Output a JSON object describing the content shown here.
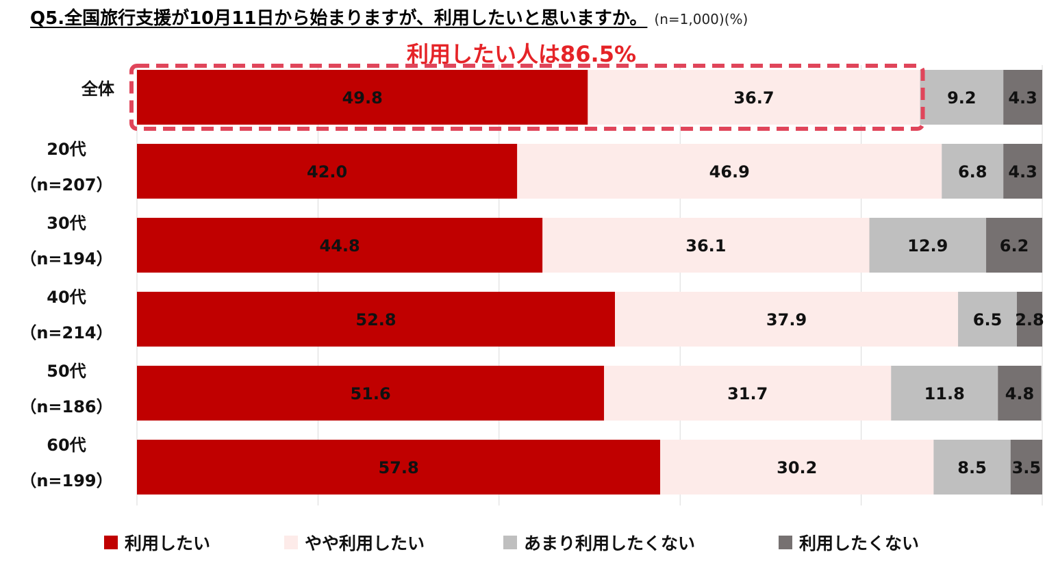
{
  "title": "Q5.全国旅行支援が10月11日から始まりますが、利用したいと思いますか。",
  "note": "(n=1,000)(%)",
  "callout": "利用したい人は86.5%",
  "chart_data": {
    "type": "bar",
    "orientation": "horizontal",
    "stacked": true,
    "categories": [
      [
        "全体"
      ],
      [
        "20代",
        "（n=207）"
      ],
      [
        "30代",
        "（n=194）"
      ],
      [
        "40代",
        "（n=214）"
      ],
      [
        "50代",
        "（n=186）"
      ],
      [
        "60代",
        "（n=199）"
      ]
    ],
    "series": [
      {
        "name": "利用したい",
        "color": "#c00000",
        "values": [
          49.8,
          42.0,
          44.8,
          52.8,
          51.6,
          57.8
        ]
      },
      {
        "name": "やや利用したい",
        "color": "#fdebe9",
        "values": [
          36.7,
          46.9,
          36.1,
          37.9,
          31.7,
          30.2
        ]
      },
      {
        "name": "あまり利用したくない",
        "color": "#bfbfbf",
        "values": [
          9.2,
          6.8,
          12.9,
          6.5,
          11.8,
          8.5
        ]
      },
      {
        "name": "利用したくない",
        "color": "#767171",
        "values": [
          4.3,
          4.3,
          6.2,
          2.8,
          4.8,
          3.5
        ]
      }
    ],
    "xlim": [
      0,
      100
    ],
    "grid": true,
    "legend_position": "bottom",
    "highlight": {
      "category_index": 0,
      "series": [
        "利用したい",
        "やや利用したい"
      ],
      "color": "#e0455a"
    }
  }
}
